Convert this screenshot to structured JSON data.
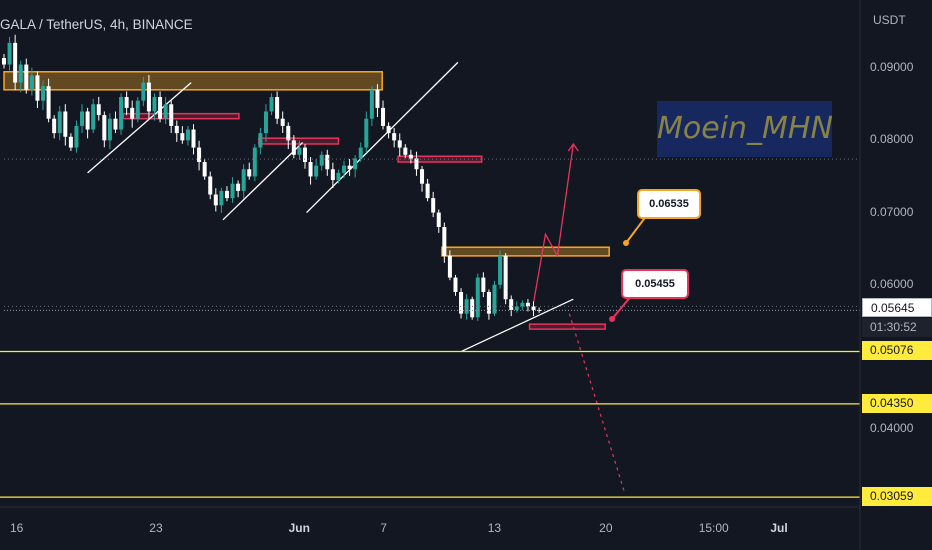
{
  "header": {
    "title": "GALA / TetherUS, 4h, BINANCE",
    "currency": "USDT"
  },
  "watermark": "Moein_MHN",
  "callouts": {
    "upper": "0.06535",
    "lower": "0.05455"
  },
  "price_scale": {
    "current": "0.05645",
    "countdown": "01:30:52"
  },
  "colors": {
    "background": "#131722",
    "up": "#26a69a",
    "down": "#ffffff",
    "zone": "#f5a623",
    "resistance": "#e8335a",
    "level": "#ffeb3b"
  },
  "chart_data": {
    "type": "candlestick",
    "title": "GALA / TetherUS, 4h, BINANCE",
    "ylabel": "USDT",
    "ylim": [
      0.0295,
      0.0975
    ],
    "xlim": [
      0,
      214
    ],
    "x_ticks": [
      {
        "label": "16",
        "x": 3
      },
      {
        "label": "23",
        "x": 38
      },
      {
        "label": "Jun",
        "x": 73
      },
      {
        "label": "7",
        "x": 96
      },
      {
        "label": "13",
        "x": 123
      },
      {
        "label": "20",
        "x": 151
      },
      {
        "label": "15:00",
        "x": 176
      },
      {
        "label": "Jul",
        "x": 194
      }
    ],
    "y_ticks": [
      "0.09000",
      "0.08000",
      "0.07000",
      "0.06000",
      "0.04000"
    ],
    "series": [
      {
        "values": [
          0.0905,
          0.0935,
          0.088,
          0.0905,
          0.087,
          0.089,
          0.0855,
          0.0875,
          0.083,
          0.081,
          0.084,
          0.0805,
          0.079,
          0.082,
          0.084,
          0.0815,
          0.085,
          0.0835,
          0.08,
          0.083,
          0.0815,
          0.086,
          0.0845,
          0.083,
          0.0855,
          0.088,
          0.084,
          0.086,
          0.083,
          0.085,
          0.082,
          0.081,
          0.08,
          0.0815,
          0.079,
          0.077,
          0.075,
          0.0725,
          0.071,
          0.073,
          0.072,
          0.074,
          0.073,
          0.076,
          0.075,
          0.079,
          0.081,
          0.084,
          0.086,
          0.083,
          0.082,
          0.08,
          0.078,
          0.079,
          0.077,
          0.075,
          0.0765,
          0.078,
          0.076,
          0.0745,
          0.0755,
          0.0765,
          0.076,
          0.0775,
          0.079,
          0.083,
          0.087,
          0.0845,
          0.082,
          0.081,
          0.08,
          0.079,
          0.078,
          0.0775,
          0.076,
          0.074,
          0.072,
          0.07,
          0.068,
          0.064,
          0.061,
          0.059,
          0.056,
          0.058,
          0.0555,
          0.061,
          0.059,
          0.056,
          0.06,
          0.064,
          0.058,
          0.0565,
          0.057,
          0.0575,
          0.057,
          0.0565,
          0.05645
        ]
      }
    ],
    "annotations": {
      "zones": [
        {
          "x": [
            0,
            95
          ],
          "y": [
            0.087,
            0.0895
          ],
          "kind": "supply"
        },
        {
          "x": [
            110,
            152
          ],
          "y": [
            0.064,
            0.0652
          ],
          "kind": "supply"
        },
        {
          "x": [
            132,
            151
          ],
          "y": [
            0.054,
            0.05455
          ],
          "kind": "resistance"
        },
        {
          "x": [
            30,
            59
          ],
          "y": [
            0.083,
            0.0837
          ],
          "kind": "resistance"
        },
        {
          "x": [
            64,
            84
          ],
          "y": [
            0.0795,
            0.0803
          ],
          "kind": "resistance"
        },
        {
          "x": [
            99,
            120
          ],
          "y": [
            0.077,
            0.0778
          ],
          "kind": "resistance"
        }
      ],
      "horizontal_levels": [
        {
          "value": 0.05076,
          "label": "0.05076"
        },
        {
          "value": 0.0435,
          "label": "0.04350"
        },
        {
          "value": 0.03059,
          "label": "0.03059"
        }
      ],
      "dotted_levels": [
        0.057,
        0.0774
      ],
      "projection_up": [
        [
          133,
          0.0575
        ],
        [
          136,
          0.067
        ],
        [
          139,
          0.064
        ],
        [
          143,
          0.0795
        ]
      ],
      "projection_down": [
        [
          142,
          0.056
        ],
        [
          156,
          0.031
        ]
      ],
      "trendlines": [
        [
          [
            21,
            0.0755
          ],
          [
            47,
            0.088
          ]
        ],
        [
          [
            55,
            0.069
          ],
          [
            75,
            0.0797
          ]
        ],
        [
          [
            76,
            0.07
          ],
          [
            114,
            0.0908
          ]
        ],
        [
          [
            115,
            0.0508
          ],
          [
            143,
            0.058
          ]
        ]
      ]
    }
  }
}
